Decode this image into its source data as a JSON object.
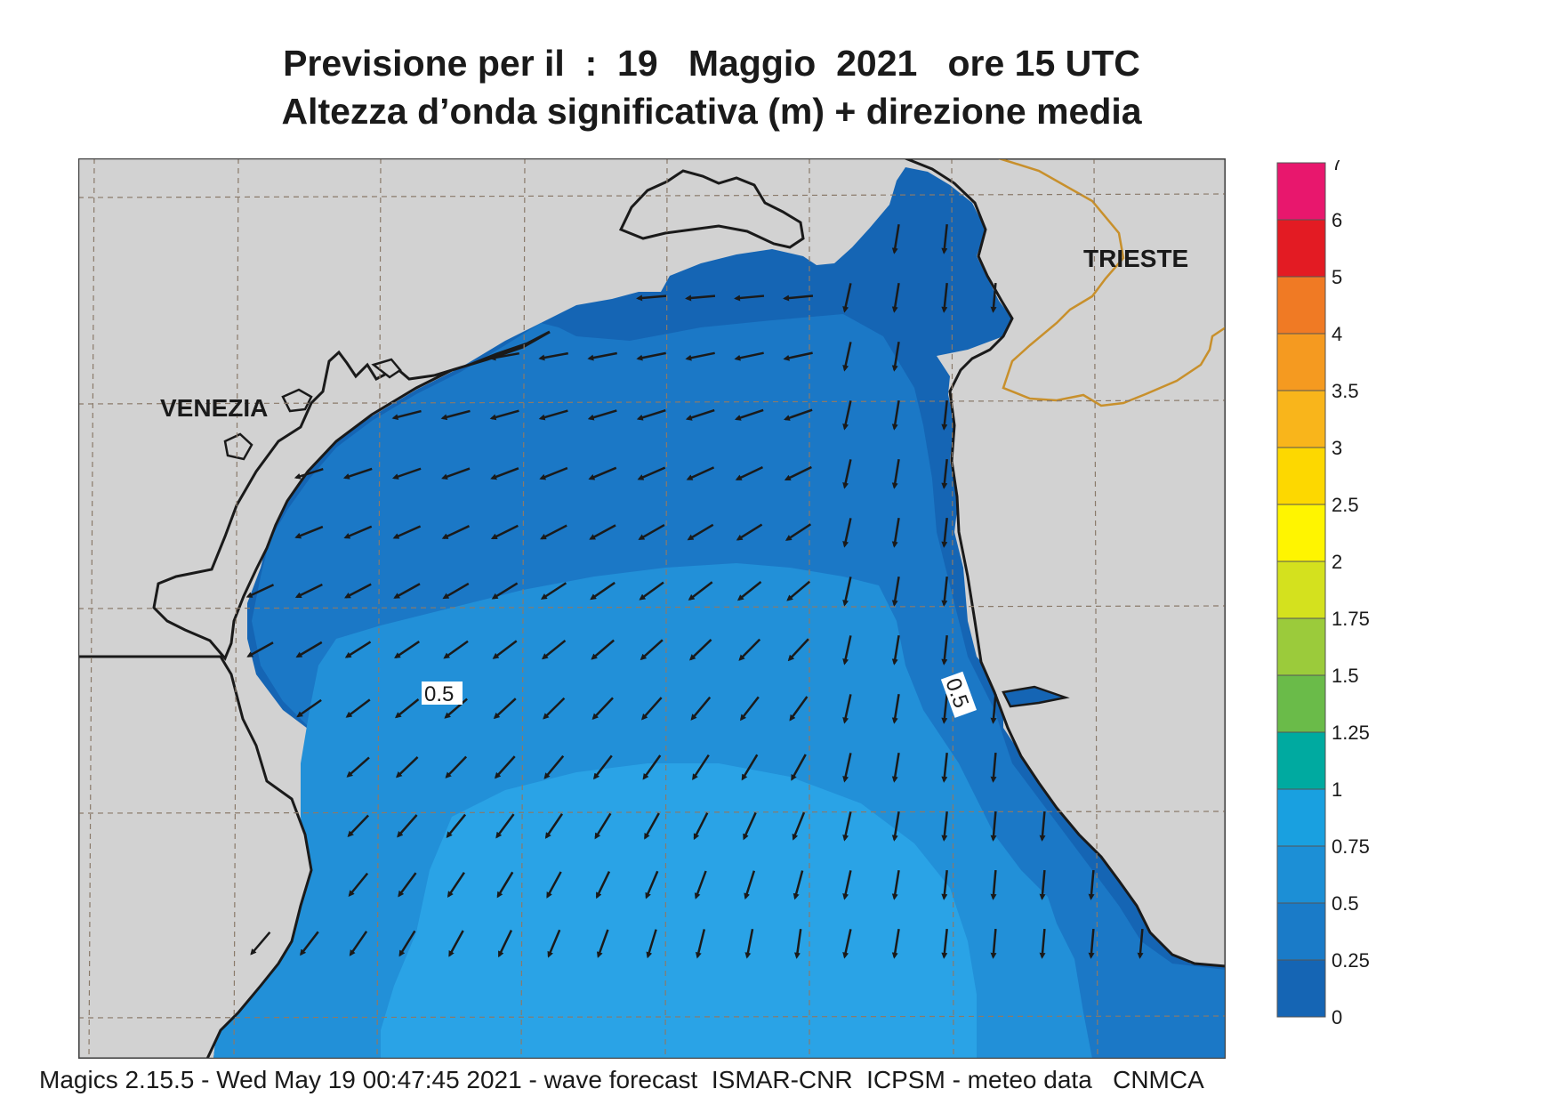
{
  "title": {
    "line1": "Previsione per il  :  19   Maggio  2021   ore 15 UTC",
    "line2": "Altezza d’onda significativa (m) + direzione media"
  },
  "map": {
    "place_labels": [
      {
        "name": "VENEZIA"
      },
      {
        "name": "TRIESTE"
      }
    ],
    "contour_labels": [
      "0.5",
      "0.5"
    ],
    "colors": {
      "land": "#d2d2d2",
      "coast": "#1a1a1a",
      "border": "#c8902c",
      "grid": "#8a7a6a",
      "wave_0_025": "#1565b4",
      "wave_025_05": "#1b78c6",
      "wave_05_075": "#2290d8",
      "wave_075_1": "#2aa3e6",
      "arrow": "#1a1a1a"
    }
  },
  "legend": {
    "ticks": [
      "7",
      "6",
      "5",
      "4",
      "3.5",
      "3",
      "2.5",
      "2",
      "1.75",
      "1.5",
      "1.25",
      "1",
      "0.75",
      "0.5",
      "0.25",
      "0"
    ],
    "colors": [
      "#e8176d",
      "#e31b23",
      "#f07a24",
      "#f59a20",
      "#f9b51b",
      "#fdd800",
      "#fff500",
      "#d4e11e",
      "#9bcb3b",
      "#6abb49",
      "#00aaa0",
      "#19a0e0",
      "#1c8fd6",
      "#1a7bc8",
      "#1565b4"
    ]
  },
  "footer": "Magics 2.15.5 - Wed May 19 00:47:45 2021 - wave forecast  ISMAR-CNR  ICPSM - meteo data   CNMCA"
}
